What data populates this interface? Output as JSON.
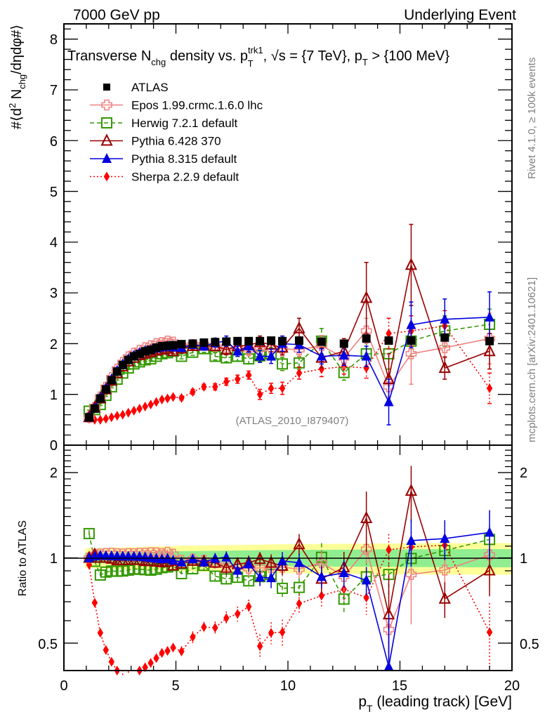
{
  "header": {
    "left": "7000 GeV pp",
    "right": "Underlying Event"
  },
  "side_text": {
    "rivet": "Rivet 4.1.0, ≥ 100k events",
    "mcplots": "mcplots.cern.ch [arXiv:2401.10621]"
  },
  "chart_data": [
    {
      "type": "scatter",
      "panel": "main",
      "title_parts": {
        "a": "Transverse N",
        "a_sub": "chg",
        "b": " density vs. p",
        "b_sup": "trk1",
        "b_sub": "T",
        "c": ", √s = {7 TeV}, p",
        "c_sub": "T",
        "d": " > {100 MeV}"
      },
      "ylabel": "#⟨d² N_chg/dηdφ#⟩",
      "ylabel_parts": {
        "a": "#⟨d",
        "sup": "2",
        "b": " N",
        "sub": "chg",
        "c": "/dηdφ#⟩"
      },
      "xlim": [
        0,
        20
      ],
      "ylim": [
        0,
        8.3
      ],
      "yticks": [
        "0",
        "1",
        "2",
        "3",
        "4",
        "5",
        "6",
        "7",
        "8"
      ],
      "annotation": "(ATLAS_2010_I879407)",
      "legend_position": "top-left",
      "x": [
        1.125,
        1.375,
        1.625,
        1.875,
        2.125,
        2.375,
        2.625,
        2.875,
        3.125,
        3.375,
        3.625,
        3.875,
        4.125,
        4.375,
        4.625,
        4.875,
        5.25,
        5.75,
        6.25,
        6.75,
        7.25,
        7.75,
        8.25,
        8.75,
        9.25,
        9.75,
        10.5,
        11.5,
        12.5,
        13.5,
        14.5,
        15.5,
        17.0,
        19.0
      ],
      "series": [
        {
          "name": "ATLAS",
          "key": "atlas",
          "color": "#000000",
          "marker": "square-filled",
          "line": "none",
          "values": [
            0.55,
            0.72,
            0.92,
            1.1,
            1.28,
            1.45,
            1.58,
            1.68,
            1.75,
            1.8,
            1.85,
            1.88,
            1.92,
            1.95,
            1.96,
            1.97,
            1.99,
            2.0,
            2.02,
            2.03,
            2.04,
            2.05,
            2.05,
            2.05,
            2.06,
            2.05,
            2.06,
            2.04,
            2.0,
            2.1,
            2.06,
            2.06,
            2.12,
            2.05
          ]
        },
        {
          "name": "Epos 1.99.crmc.1.6.0 lhc",
          "key": "epos",
          "color": "#f08080",
          "marker": "cross-open",
          "line": "solid",
          "values": [
            0.55,
            0.74,
            0.95,
            1.14,
            1.33,
            1.5,
            1.63,
            1.74,
            1.81,
            1.87,
            1.92,
            1.96,
            2.0,
            2.02,
            2.05,
            2.03,
            1.95,
            1.98,
            1.98,
            1.95,
            1.92,
            1.9,
            1.88,
            1.89,
            1.9,
            1.9,
            1.88,
            1.96,
            1.72,
            2.25,
            1.15,
            1.8,
            1.92,
            2.1
          ],
          "err": [
            0.02,
            0.02,
            0.02,
            0.02,
            0.02,
            0.02,
            0.02,
            0.03,
            0.03,
            0.03,
            0.03,
            0.03,
            0.04,
            0.04,
            0.05,
            0.05,
            0.06,
            0.07,
            0.08,
            0.09,
            0.1,
            0.1,
            0.12,
            0.12,
            0.13,
            0.14,
            0.14,
            0.2,
            0.2,
            0.25,
            0.2,
            0.6,
            0.2,
            0.5
          ]
        },
        {
          "name": "Herwig 7.2.1 default",
          "key": "herwig",
          "color": "#339900",
          "marker": "square-open",
          "line": "dashed",
          "values": [
            0.67,
            0.7,
            0.8,
            0.98,
            1.15,
            1.3,
            1.42,
            1.52,
            1.6,
            1.64,
            1.68,
            1.7,
            1.75,
            1.8,
            1.82,
            1.85,
            1.75,
            1.83,
            1.9,
            1.75,
            1.72,
            1.75,
            1.7,
            1.76,
            1.8,
            1.6,
            1.62,
            2.05,
            1.43,
            1.8,
            1.8,
            2.05,
            2.25,
            2.38
          ],
          "err": [
            0.02,
            0.02,
            0.02,
            0.02,
            0.02,
            0.02,
            0.02,
            0.03,
            0.03,
            0.03,
            0.03,
            0.03,
            0.04,
            0.04,
            0.05,
            0.05,
            0.05,
            0.06,
            0.07,
            0.07,
            0.08,
            0.09,
            0.1,
            0.11,
            0.12,
            0.13,
            0.13,
            0.25,
            0.15,
            0.25,
            0.3,
            0.3,
            0.3,
            0.3
          ]
        },
        {
          "name": "Pythia 6.428 370",
          "key": "py6",
          "color": "#990000",
          "marker": "triangle-open",
          "line": "solid",
          "values": [
            0.55,
            0.74,
            0.92,
            1.1,
            1.27,
            1.42,
            1.55,
            1.65,
            1.72,
            1.77,
            1.8,
            1.83,
            1.86,
            1.88,
            1.9,
            1.85,
            1.9,
            1.95,
            1.96,
            1.95,
            1.88,
            1.95,
            1.97,
            2.03,
            1.98,
            1.92,
            2.3,
            1.72,
            1.85,
            2.9,
            1.3,
            3.55,
            1.52,
            1.85
          ],
          "err": [
            0.02,
            0.02,
            0.02,
            0.02,
            0.02,
            0.02,
            0.02,
            0.03,
            0.03,
            0.03,
            0.03,
            0.03,
            0.04,
            0.04,
            0.05,
            0.05,
            0.06,
            0.07,
            0.08,
            0.08,
            0.1,
            0.1,
            0.12,
            0.12,
            0.14,
            0.14,
            0.2,
            0.2,
            0.25,
            0.7,
            0.5,
            0.8,
            0.22,
            0.35
          ]
        },
        {
          "name": "Pythia 8.315 default",
          "key": "py8",
          "color": "#0000e0",
          "marker": "triangle-filled",
          "line": "solid",
          "values": [
            0.55,
            0.73,
            0.94,
            1.12,
            1.3,
            1.47,
            1.6,
            1.7,
            1.77,
            1.82,
            1.86,
            1.88,
            1.91,
            1.93,
            1.95,
            1.93,
            1.92,
            1.98,
            1.95,
            2.02,
            2.05,
            1.85,
            1.95,
            1.75,
            1.75,
            2.0,
            1.98,
            1.75,
            1.77,
            1.75,
            0.85,
            2.37,
            2.48,
            2.52
          ],
          "err": [
            0.02,
            0.02,
            0.02,
            0.02,
            0.02,
            0.02,
            0.02,
            0.03,
            0.03,
            0.03,
            0.03,
            0.03,
            0.04,
            0.04,
            0.05,
            0.05,
            0.06,
            0.07,
            0.08,
            0.09,
            0.1,
            0.1,
            0.12,
            0.12,
            0.14,
            0.15,
            0.15,
            0.15,
            0.2,
            0.2,
            0.45,
            0.45,
            0.4,
            0.5
          ]
        },
        {
          "name": "Sherpa 2.2.9 default",
          "key": "sherpa",
          "color": "#ff0000",
          "marker": "diamond-filled",
          "line": "dotted",
          "values": [
            0.52,
            0.5,
            0.5,
            0.52,
            0.55,
            0.58,
            0.6,
            0.64,
            0.68,
            0.72,
            0.76,
            0.8,
            0.85,
            0.9,
            0.92,
            0.95,
            0.93,
            1.05,
            1.15,
            1.15,
            1.25,
            1.3,
            1.38,
            1.0,
            1.12,
            1.12,
            1.42,
            1.5,
            1.55,
            1.52,
            2.2,
            2.25,
            2.35,
            1.12
          ],
          "err": [
            0.01,
            0.01,
            0.01,
            0.01,
            0.01,
            0.01,
            0.01,
            0.02,
            0.02,
            0.02,
            0.02,
            0.02,
            0.02,
            0.03,
            0.03,
            0.03,
            0.04,
            0.05,
            0.05,
            0.06,
            0.07,
            0.08,
            0.08,
            0.1,
            0.1,
            0.12,
            0.12,
            0.15,
            0.15,
            0.2,
            0.3,
            0.3,
            0.3,
            0.3
          ]
        }
      ]
    },
    {
      "type": "scatter",
      "panel": "ratio",
      "ylabel": "Ratio to ATLAS",
      "xlabel": "p_T (leading track) [GeV]",
      "xlabel_parts": {
        "a": "p",
        "sub": "T",
        "b": " (leading track) [GeV]"
      },
      "yscale": "log",
      "ylim": [
        0.4,
        2.5
      ],
      "yticks": [
        "0.5",
        "1",
        "2"
      ],
      "xticks": [
        "0",
        "5",
        "10",
        "15",
        "20"
      ],
      "xlim": [
        0,
        20
      ],
      "band": {
        "inner_color": "#90ee90",
        "outer_color": "#ffff99",
        "inner_halfwidth_frac": 0.05,
        "outer_halfwidth_frac": 0.1
      },
      "reference_line": 1.0
    }
  ]
}
